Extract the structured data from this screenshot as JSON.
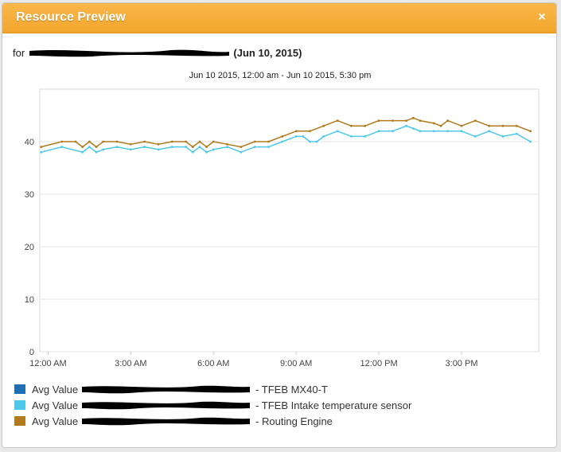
{
  "window": {
    "title": "Resource Preview",
    "close_label": "×"
  },
  "header": {
    "prefix": "for",
    "date_text": "(Jun 10, 2015)",
    "range_text": "Jun 10 2015, 12:00 am - Jun 10 2015, 5:30 pm"
  },
  "colors": {
    "title_bar": "#f3a62c",
    "redaction": "#000000",
    "grid": "#e6e6e6"
  },
  "chart_data": {
    "type": "line",
    "x_unit": "hours since 12:00 AM",
    "xlim": [
      -0.3,
      17.8
    ],
    "ylim": [
      0,
      50
    ],
    "xticks": [
      {
        "value": 0,
        "label": "12:00 AM"
      },
      {
        "value": 3,
        "label": "3:00 AM"
      },
      {
        "value": 6,
        "label": "6:00 AM"
      },
      {
        "value": 9,
        "label": "9:00 AM"
      },
      {
        "value": 12,
        "label": "12:00 PM"
      },
      {
        "value": 15,
        "label": "3:00 PM"
      }
    ],
    "yticks": [
      0,
      10,
      20,
      30,
      40
    ],
    "grid": true,
    "legend_placement": "bottom-left",
    "series": [
      {
        "label_prefix": "Avg Value",
        "label_suffix": "- TFEB MX40-T",
        "color": "#1f6fb5",
        "x": [],
        "values": []
      },
      {
        "label_prefix": "Avg Value",
        "label_suffix": "- TFEB Intake temperature sensor",
        "color": "#4dc8ea",
        "x": [
          -0.25,
          0.5,
          1.25,
          1.5,
          1.75,
          2.0,
          2.5,
          3.0,
          3.5,
          4.0,
          4.5,
          5.0,
          5.25,
          5.5,
          5.75,
          6.0,
          6.5,
          7.0,
          7.5,
          8.0,
          8.5,
          9.0,
          9.25,
          9.5,
          9.75,
          10.0,
          10.5,
          11.0,
          11.5,
          12.0,
          12.5,
          13.0,
          13.25,
          13.5,
          14.0,
          14.5,
          15.0,
          15.5,
          16.0,
          16.5,
          17.0,
          17.5
        ],
        "values": [
          38,
          39,
          38,
          39,
          38,
          38.5,
          39,
          38.5,
          39,
          38.5,
          39,
          39,
          38,
          39,
          38,
          38.5,
          39,
          38,
          39,
          39,
          40,
          41,
          41,
          40,
          40,
          41,
          42,
          41,
          41,
          42,
          42,
          43,
          42.5,
          42,
          42,
          42,
          42,
          41,
          42,
          41,
          41.5,
          40
        ]
      },
      {
        "label_prefix": "Avg Value",
        "label_suffix": "- Routing Engine",
        "color": "#b07a1d",
        "x": [
          -0.25,
          0.5,
          1.0,
          1.25,
          1.5,
          1.75,
          2.0,
          2.5,
          3.0,
          3.5,
          4.0,
          4.5,
          5.0,
          5.25,
          5.5,
          5.75,
          6.0,
          6.5,
          7.0,
          7.5,
          8.0,
          8.5,
          9.0,
          9.5,
          10.0,
          10.5,
          11.0,
          11.5,
          12.0,
          12.5,
          13.0,
          13.25,
          13.5,
          14.0,
          14.25,
          14.5,
          15.0,
          15.5,
          16.0,
          16.5,
          17.0,
          17.5
        ],
        "values": [
          39,
          40,
          40,
          39,
          40,
          39,
          40,
          40,
          39.5,
          40,
          39.5,
          40,
          40,
          39,
          40,
          39,
          40,
          39.5,
          39,
          40,
          40,
          41,
          42,
          42,
          43,
          44,
          43,
          43,
          44,
          44,
          44,
          44.5,
          44,
          43.5,
          43,
          44,
          43,
          44,
          43,
          43,
          43,
          42
        ]
      }
    ]
  }
}
